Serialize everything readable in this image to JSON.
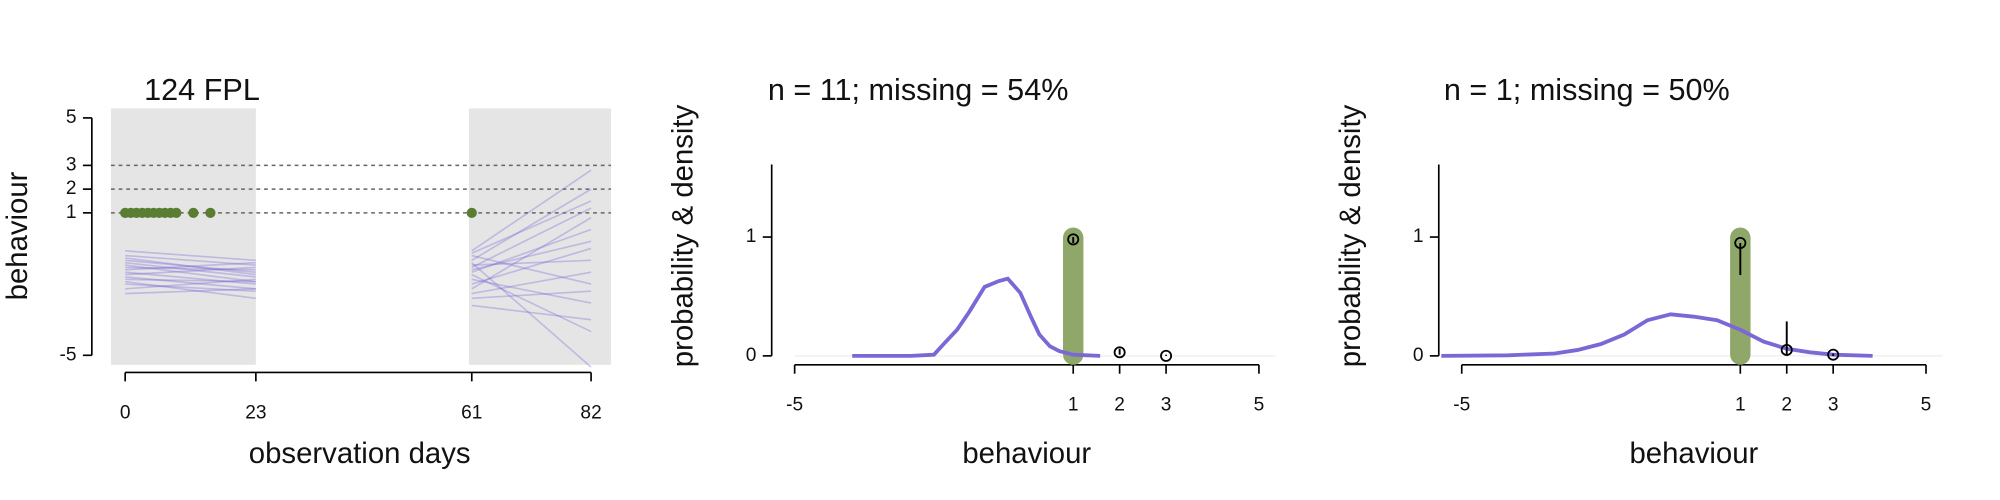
{
  "chart_data": [
    {
      "type": "line",
      "title": "124 FPL",
      "xlabel": "observation days",
      "ylabel": "behaviour",
      "xlim": [
        -2.5,
        85.5
      ],
      "ylim": [
        -5.4,
        5.4
      ],
      "xticks": [
        0,
        23,
        61,
        82
      ],
      "yticks": [
        -5,
        1,
        2,
        3,
        5
      ],
      "reference_lines": [
        1,
        2,
        3
      ],
      "regions": [
        {
          "shade": [
            -2.5,
            23
          ],
          "x": [
            0,
            23
          ],
          "lines": [
            [
              -0.8,
              -1.2
            ],
            [
              -1.0,
              -1.5
            ],
            [
              -1.3,
              -1.4
            ],
            [
              -1.5,
              -2.0
            ],
            [
              -1.1,
              -1.7
            ],
            [
              -1.8,
              -1.9
            ],
            [
              -2.0,
              -2.3
            ],
            [
              -0.6,
              -1.0
            ],
            [
              -1.6,
              -1.3
            ],
            [
              -2.4,
              -2.2
            ],
            [
              -1.2,
              -1.9
            ],
            [
              -0.9,
              -1.6
            ],
            [
              -1.9,
              -2.6
            ],
            [
              -1.4,
              -1.1
            ],
            [
              -2.2,
              -1.8
            ],
            [
              -1.7,
              -2.2
            ]
          ]
        },
        {
          "shade": [
            60.5,
            85.5
          ],
          "x": [
            61,
            82
          ],
          "lines": [
            [
              -0.6,
              2.8
            ],
            [
              -1.0,
              2.0
            ],
            [
              -1.3,
              1.2
            ],
            [
              -1.5,
              0.3
            ],
            [
              -2.0,
              -0.5
            ],
            [
              -1.2,
              -1.0
            ],
            [
              -2.4,
              -1.5
            ],
            [
              -0.8,
              -2.0
            ],
            [
              -1.8,
              -2.8
            ],
            [
              -2.9,
              -3.5
            ],
            [
              -1.6,
              -4.0
            ],
            [
              -1.1,
              -5.5
            ],
            [
              -2.2,
              0.8
            ],
            [
              -0.7,
              1.5
            ],
            [
              -2.6,
              -2.3
            ],
            [
              -1.4,
              -0.2
            ]
          ]
        }
      ],
      "line_color": "#7b68d6",
      "shade_color": "#e5e5e5",
      "observations": {
        "x": [
          0,
          1,
          2,
          3,
          4,
          5,
          6,
          7,
          8,
          9,
          12,
          15,
          61
        ],
        "values": [
          1,
          1,
          1,
          1,
          1,
          1,
          1,
          1,
          1,
          1,
          1,
          1,
          1
        ],
        "color": "#5a7d32"
      }
    },
    {
      "type": "density",
      "title": "n = 11; missing = 54%",
      "xlabel": "behaviour",
      "ylabel": "probability & density",
      "xlim": [
        -5,
        5
      ],
      "ylim": [
        -0.075,
        1.61
      ],
      "xticks": [
        -5,
        1,
        2,
        3,
        5
      ],
      "yticks": [
        0,
        1
      ],
      "curve": {
        "x": [
          -3.76,
          -2.5,
          -2,
          -1.79,
          -1.5,
          -1.24,
          -0.91,
          -0.6,
          -0.41,
          -0.14,
          0.1,
          0.27,
          0.5,
          0.7,
          1,
          1.58
        ],
        "y": [
          0,
          0,
          0.01,
          0.1,
          0.22,
          0.37,
          0.58,
          0.63,
          0.65,
          0.53,
          0.32,
          0.18,
          0.08,
          0.04,
          0.01,
          0
        ],
        "color": "#7b68d6"
      },
      "observed": 1,
      "observed_color": "#8fa86a",
      "points": {
        "x": [
          1,
          2,
          3
        ],
        "values": [
          0.98,
          0.03,
          0.0
        ],
        "lower": [
          0.95,
          0.01,
          0.0
        ],
        "upper": [
          1.0,
          0.06,
          0.01
        ]
      }
    },
    {
      "type": "density",
      "title": "n = 1; missing = 50%",
      "xlabel": "behaviour",
      "ylabel": "probability & density",
      "xlim": [
        -5,
        5
      ],
      "ylim": [
        -0.075,
        1.61
      ],
      "xticks": [
        -5,
        1,
        2,
        3,
        5
      ],
      "yticks": [
        0,
        1
      ],
      "curve": {
        "x": [
          -5.44,
          -4,
          -3,
          -2.5,
          -2,
          -1.5,
          -1,
          -0.5,
          0,
          0.5,
          1,
          1.5,
          2,
          2.5,
          3,
          3.85
        ],
        "y": [
          0,
          0.005,
          0.02,
          0.05,
          0.1,
          0.18,
          0.3,
          0.35,
          0.33,
          0.3,
          0.22,
          0.12,
          0.06,
          0.03,
          0.01,
          0
        ],
        "color": "#7b68d6"
      },
      "observed": 1,
      "observed_color": "#8fa86a",
      "points": {
        "x": [
          1,
          2,
          3
        ],
        "values": [
          0.95,
          0.05,
          0.01
        ],
        "lower": [
          0.68,
          0.0,
          0.0
        ],
        "upper": [
          0.95,
          0.29,
          0.02
        ]
      }
    }
  ]
}
